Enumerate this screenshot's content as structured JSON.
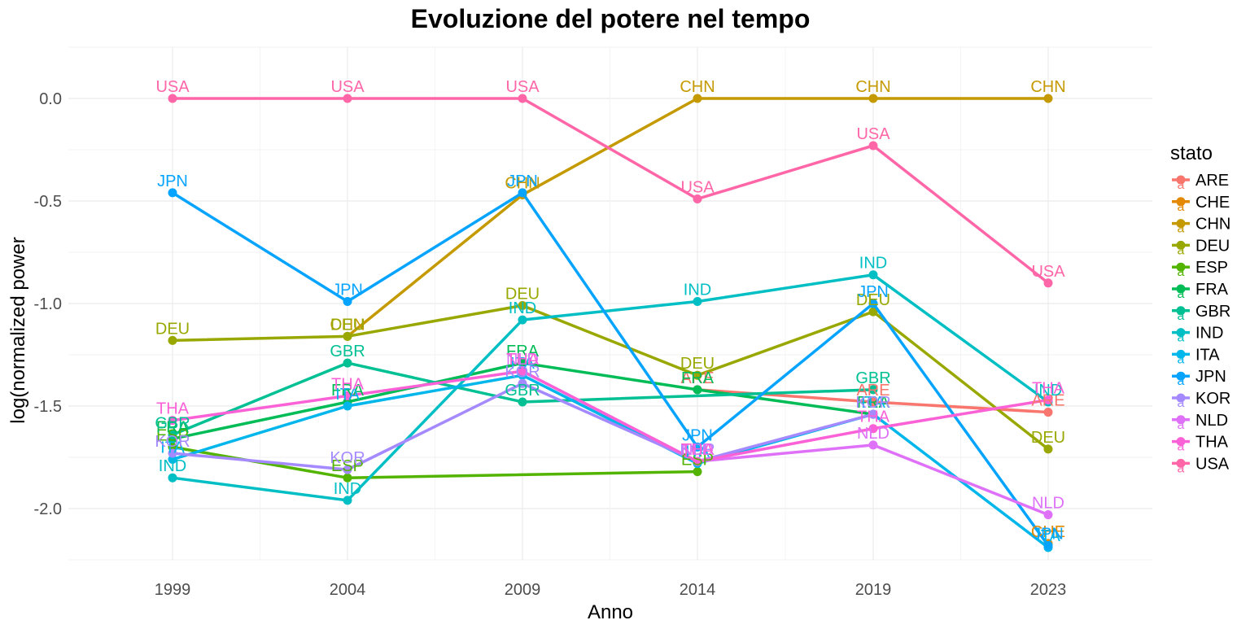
{
  "chart_data": {
    "type": "line",
    "title": "Evoluzione del potere nel tempo",
    "xlabel": "Anno",
    "ylabel": "log(normalized power",
    "categories": [
      "1999",
      "2004",
      "2009",
      "2014",
      "2019",
      "2023"
    ],
    "ylim": [
      -2.25,
      0.25
    ],
    "yticks": [
      0.0,
      -0.5,
      -1.0,
      -1.5,
      -2.0
    ],
    "ytick_labels": [
      "0.0",
      "-0.5",
      "-1.0",
      "-1.5",
      "-2.0"
    ],
    "grid": true,
    "point_labels": true,
    "legend": {
      "title": "stato",
      "position": "right"
    },
    "series": [
      {
        "name": "ARE",
        "color": "#F8766D",
        "values": [
          null,
          null,
          null,
          -1.42,
          -1.48,
          -1.53
        ]
      },
      {
        "name": "CHE",
        "color": "#E38900",
        "values": [
          null,
          null,
          null,
          null,
          null,
          -2.17
        ]
      },
      {
        "name": "CHN",
        "color": "#C49A00",
        "values": [
          null,
          -1.16,
          -0.47,
          0.0,
          0.0,
          0.0
        ]
      },
      {
        "name": "DEU",
        "color": "#99A800",
        "values": [
          -1.18,
          -1.16,
          -1.01,
          -1.35,
          -1.04,
          -1.71
        ]
      },
      {
        "name": "ESP",
        "color": "#53B400",
        "values": [
          -1.7,
          -1.85,
          null,
          -1.82,
          null,
          null
        ]
      },
      {
        "name": "FRA",
        "color": "#00BC56",
        "values": [
          -1.66,
          -1.48,
          -1.29,
          -1.42,
          -1.54,
          null
        ]
      },
      {
        "name": "GBR",
        "color": "#00C094",
        "values": [
          -1.64,
          -1.29,
          -1.48,
          null,
          -1.42,
          null
        ]
      },
      {
        "name": "IND",
        "color": "#00BFC4",
        "values": [
          -1.85,
          -1.96,
          -1.08,
          -0.99,
          -0.86,
          -1.48
        ]
      },
      {
        "name": "ITA",
        "color": "#00B6EB",
        "values": [
          -1.76,
          -1.5,
          -1.35,
          -1.78,
          -1.54,
          -2.19
        ]
      },
      {
        "name": "JPN",
        "color": "#06A4FF",
        "values": [
          -0.46,
          -0.99,
          -0.46,
          -1.7,
          -1.0,
          -2.18
        ]
      },
      {
        "name": "KOR",
        "color": "#A58AFF",
        "values": [
          -1.73,
          -1.81,
          -1.39,
          -1.77,
          -1.54,
          null
        ]
      },
      {
        "name": "NLD",
        "color": "#DF70F8",
        "values": [
          null,
          null,
          -1.33,
          -1.77,
          -1.69,
          -2.03
        ]
      },
      {
        "name": "THA",
        "color": "#FB61D7",
        "values": [
          -1.57,
          -1.45,
          -1.33,
          -1.77,
          -1.61,
          -1.47
        ]
      },
      {
        "name": "USA",
        "color": "#FF66A8",
        "values": [
          0.0,
          0.0,
          0.0,
          -0.49,
          -0.23,
          -0.9
        ]
      }
    ]
  }
}
